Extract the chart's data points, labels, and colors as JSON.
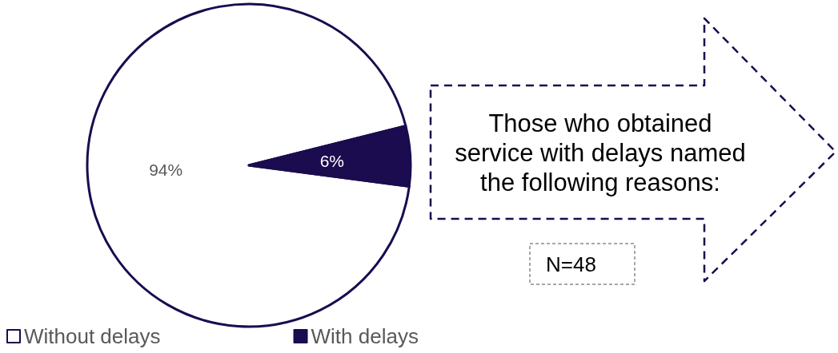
{
  "chart_data": {
    "type": "pie",
    "categories": [
      "Without delays",
      "With delays"
    ],
    "values": [
      94,
      6
    ],
    "colors": [
      "#ffffff",
      "#1b0b4f"
    ],
    "value_labels": [
      "94%",
      "6%"
    ],
    "legend": "bottom left",
    "annotations": [
      "Those who obtained service with delays named the following reasons:",
      "N=48"
    ]
  }
}
